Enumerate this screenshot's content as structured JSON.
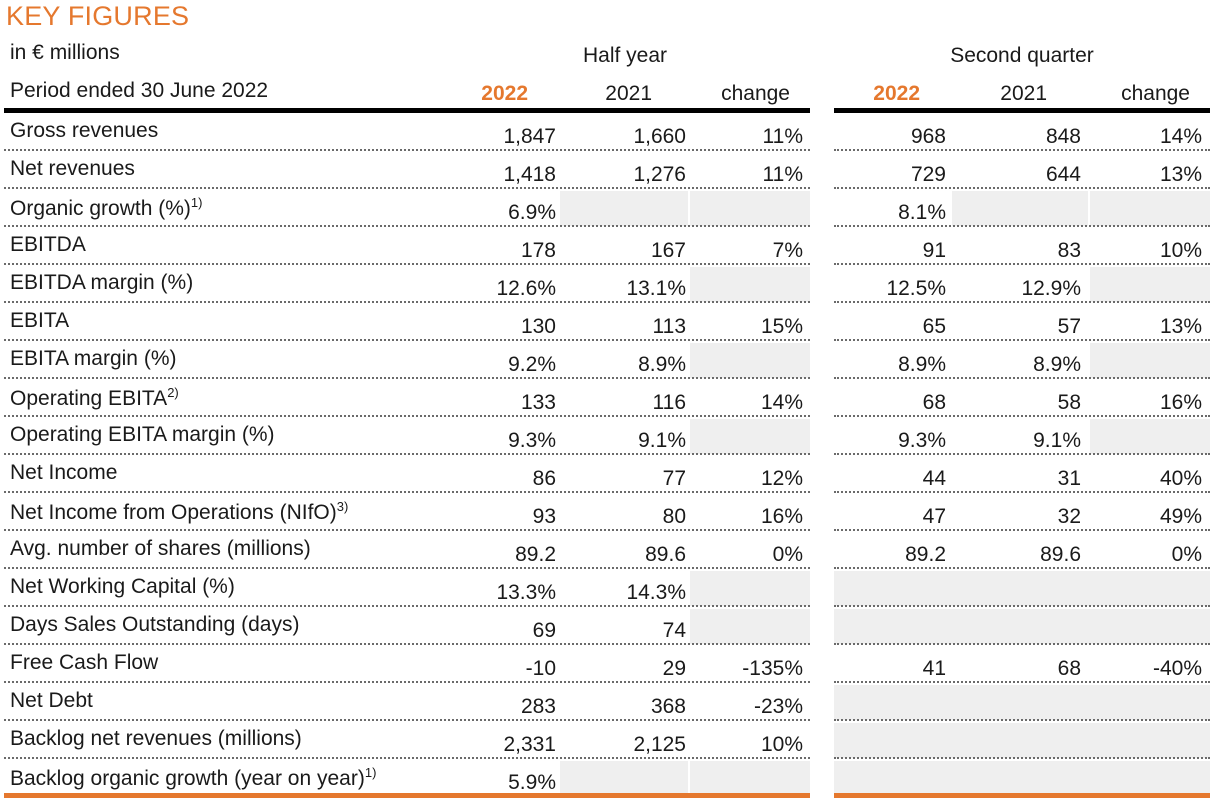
{
  "title": "KEY FIGURES",
  "units": "in € millions",
  "period": "Period ended 30 June 2022",
  "groups": {
    "half_year": "Half year",
    "second_quarter": "Second quarter"
  },
  "columns": {
    "current": "2022",
    "prior": "2021",
    "change": "change"
  },
  "colors": {
    "accent": "#e5782e",
    "shade": "#efefef"
  },
  "rows": [
    {
      "label": "Gross revenues",
      "sup": "",
      "h2022": "1,847",
      "h2021": "1,660",
      "hchg": "11%",
      "q2022": "968",
      "q2021": "848",
      "qchg": "14%"
    },
    {
      "label": "Net revenues",
      "sup": "",
      "h2022": "1,418",
      "h2021": "1,276",
      "hchg": "11%",
      "q2022": "729",
      "q2021": "644",
      "qchg": "13%"
    },
    {
      "label": "Organic growth (%)",
      "sup": "1)",
      "h2022": "6.9%",
      "h2021": "",
      "hchg": "",
      "q2022": "8.1%",
      "q2021": "",
      "qchg": ""
    },
    {
      "label": "EBITDA",
      "sup": "",
      "h2022": "178",
      "h2021": "167",
      "hchg": "7%",
      "q2022": "91",
      "q2021": "83",
      "qchg": "10%"
    },
    {
      "label": "EBITDA margin (%)",
      "sup": "",
      "h2022": "12.6%",
      "h2021": "13.1%",
      "hchg": "",
      "q2022": "12.5%",
      "q2021": "12.9%",
      "qchg": ""
    },
    {
      "label": "EBITA",
      "sup": "",
      "h2022": "130",
      "h2021": "113",
      "hchg": "15%",
      "q2022": "65",
      "q2021": "57",
      "qchg": "13%"
    },
    {
      "label": "EBITA margin (%)",
      "sup": "",
      "h2022": "9.2%",
      "h2021": "8.9%",
      "hchg": "",
      "q2022": "8.9%",
      "q2021": "8.9%",
      "qchg": ""
    },
    {
      "label": "Operating EBITA",
      "sup": "2)",
      "h2022": "133",
      "h2021": "116",
      "hchg": "14%",
      "q2022": "68",
      "q2021": "58",
      "qchg": "16%"
    },
    {
      "label": "Operating EBITA margin (%)",
      "sup": "",
      "h2022": "9.3%",
      "h2021": "9.1%",
      "hchg": "",
      "q2022": "9.3%",
      "q2021": "9.1%",
      "qchg": ""
    },
    {
      "label": "Net Income",
      "sup": "",
      "h2022": "86",
      "h2021": "77",
      "hchg": "12%",
      "q2022": "44",
      "q2021": "31",
      "qchg": "40%"
    },
    {
      "label": "Net Income from Operations (NIfO)",
      "sup": "3)",
      "h2022": "93",
      "h2021": "80",
      "hchg": "16%",
      "q2022": "47",
      "q2021": "32",
      "qchg": "49%"
    },
    {
      "label": "Avg. number of shares (millions)",
      "sup": "",
      "h2022": "89.2",
      "h2021": "89.6",
      "hchg": "0%",
      "q2022": "89.2",
      "q2021": "89.6",
      "qchg": "0%"
    },
    {
      "label": "Net Working Capital (%)",
      "sup": "",
      "h2022": "13.3%",
      "h2021": "14.3%",
      "hchg": "",
      "q2022": "",
      "q2021": "",
      "qchg": ""
    },
    {
      "label": "Days Sales Outstanding (days)",
      "sup": "",
      "h2022": "69",
      "h2021": "74",
      "hchg": "",
      "q2022": "",
      "q2021": "",
      "qchg": ""
    },
    {
      "label": "Free Cash Flow",
      "sup": "",
      "h2022": "-10",
      "h2021": "29",
      "hchg": "-135%",
      "q2022": "41",
      "q2021": "68",
      "qchg": "-40%"
    },
    {
      "label": "Net Debt",
      "sup": "",
      "h2022": "283",
      "h2021": "368",
      "hchg": "-23%",
      "q2022": "",
      "q2021": "",
      "qchg": ""
    },
    {
      "label": "Backlog net revenues (millions)",
      "sup": "",
      "h2022": "2,331",
      "h2021": "2,125",
      "hchg": "10%",
      "q2022": "",
      "q2021": "",
      "qchg": ""
    },
    {
      "label": "Backlog organic growth (year on year)",
      "sup": "1)",
      "h2022": "5.9%",
      "h2021": "",
      "hchg": "",
      "q2022": "",
      "q2021": "",
      "qchg": ""
    }
  ]
}
